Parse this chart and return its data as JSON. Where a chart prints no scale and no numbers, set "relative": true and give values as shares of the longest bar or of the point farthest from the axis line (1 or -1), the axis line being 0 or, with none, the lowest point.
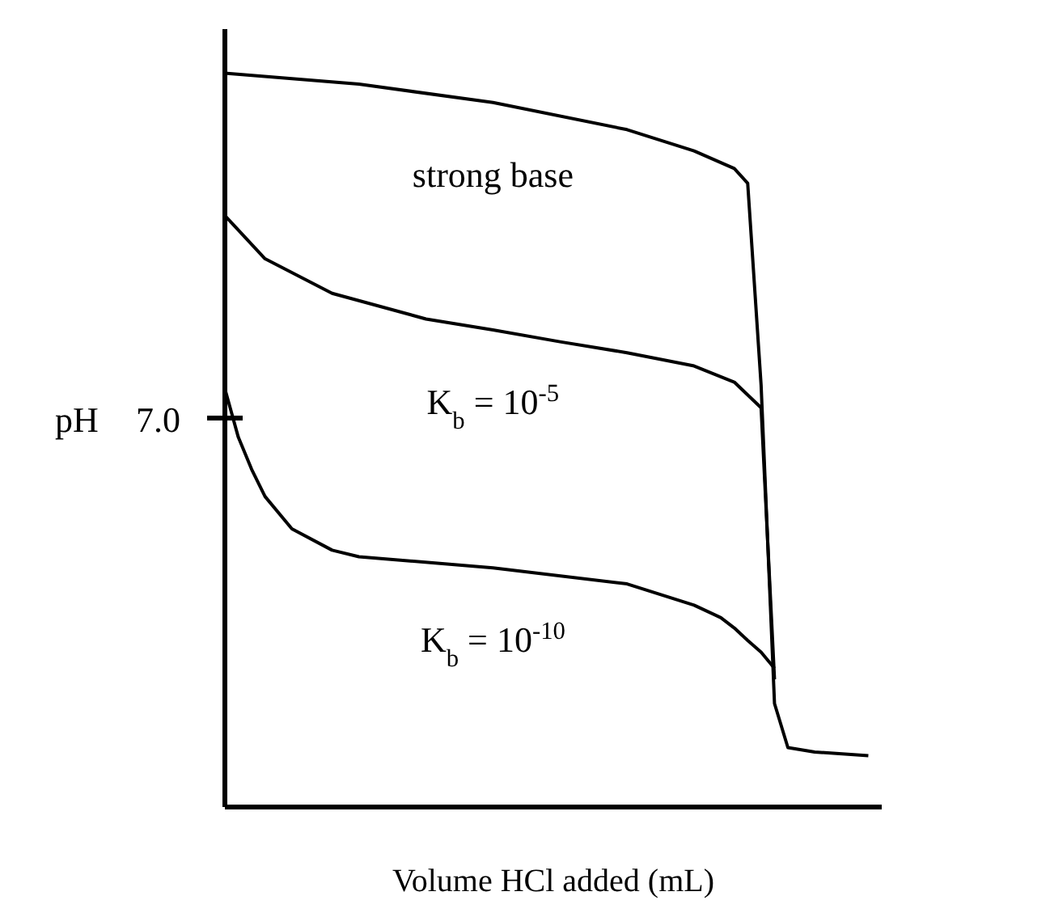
{
  "chart_data": {
    "type": "line",
    "relative": true,
    "xlabel": "Volume HCl added (mL)",
    "ylabel": "pH",
    "annotations": [
      "7.0"
    ],
    "marker": "none",
    "line_style": "solid",
    "categories": [
      null,
      null,
      null,
      null,
      null,
      null,
      null,
      null,
      null,
      null,
      null,
      null,
      null,
      null,
      null,
      null,
      null,
      null,
      null,
      null,
      null,
      null,
      null,
      null,
      null,
      null,
      null,
      null,
      null,
      null,
      null,
      null,
      null,
      null,
      null,
      null,
      null,
      null,
      null,
      null,
      null,
      null,
      null,
      null,
      null,
      null,
      null,
      null,
      null,
      null
    ],
    "series": [
      {
        "name": "strong base",
        "color": "#000000",
        "values": [
          1.0,
          null,
          null,
          null,
          null,
          null,
          null,
          null,
          null,
          null,
          0.985,
          null,
          null,
          null,
          null,
          null,
          null,
          null,
          null,
          null,
          0.96,
          null,
          null,
          null,
          null,
          null,
          null,
          null,
          null,
          null,
          0.923,
          null,
          null,
          null,
          null,
          0.894,
          null,
          null,
          0.87,
          0.85,
          0.575,
          0.141,
          0.081,
          null,
          0.075,
          null,
          null,
          null,
          0.07,
          null
        ]
      },
      {
        "name": "K$_{b}$ = 10$^{-5}$",
        "color": "#000000",
        "values": [
          0.806,
          null,
          null,
          0.747,
          null,
          null,
          null,
          null,
          0.7,
          null,
          null,
          null,
          null,
          null,
          null,
          0.665,
          null,
          null,
          null,
          null,
          0.65,
          null,
          null,
          null,
          null,
          0.634,
          null,
          null,
          null,
          null,
          0.619,
          null,
          null,
          null,
          null,
          0.601,
          null,
          null,
          0.579,
          null,
          0.544,
          0.174,
          null,
          null,
          null,
          null,
          null,
          null,
          null,
          null
        ]
      },
      {
        "name": "K$_{b}$ = 10$^{-10}$",
        "color": "#000000",
        "values": [
          0.57,
          0.504,
          0.46,
          0.423,
          null,
          0.379,
          null,
          null,
          0.35,
          null,
          0.341,
          null,
          null,
          null,
          null,
          null,
          null,
          null,
          null,
          null,
          0.326,
          null,
          null,
          null,
          null,
          null,
          null,
          null,
          null,
          null,
          0.304,
          null,
          null,
          null,
          null,
          0.275,
          null,
          0.258,
          0.244,
          0.227,
          0.211,
          0.189,
          null,
          null,
          null,
          null,
          null,
          null,
          null,
          null
        ]
      }
    ]
  }
}
